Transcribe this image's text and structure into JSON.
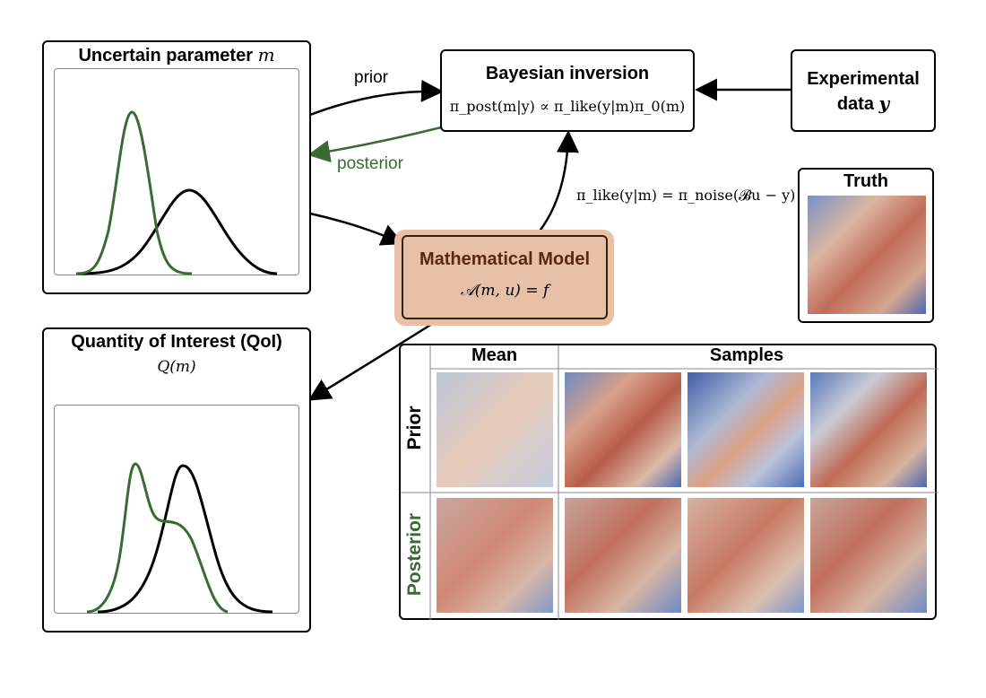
{
  "uncertain_param": {
    "title": "Uncertain parameter",
    "symbol": "m"
  },
  "bayesian": {
    "title": "Bayesian inversion",
    "formula": "π_post(m|y) ∝ π_like(y|m)π_0(m)"
  },
  "experimental": {
    "line1": "Experimental",
    "line2": "data",
    "symbol": "y"
  },
  "arrows": {
    "prior": "prior",
    "posterior": "posterior",
    "likelihood": "π_like(y|m) = π_noise(𝓑u − y)"
  },
  "model": {
    "title": "Mathematical Model",
    "equation": "𝒜(m, u)  =  f"
  },
  "truth": {
    "title": "Truth"
  },
  "qoi": {
    "title": "Quantity of Interest (QoI)",
    "symbol": "Q(m)"
  },
  "grid": {
    "mean_header": "Mean",
    "samples_header": "Samples",
    "row_prior": "Prior",
    "row_posterior": "Posterior"
  },
  "colors": {
    "prior_curve": "#000000",
    "posterior_curve": "#3a6b35",
    "model_fill": "#e8c0a8",
    "model_border": "#6b3a1f",
    "model_title": "#5a2a10",
    "posterior_label": "#3a6b35"
  }
}
